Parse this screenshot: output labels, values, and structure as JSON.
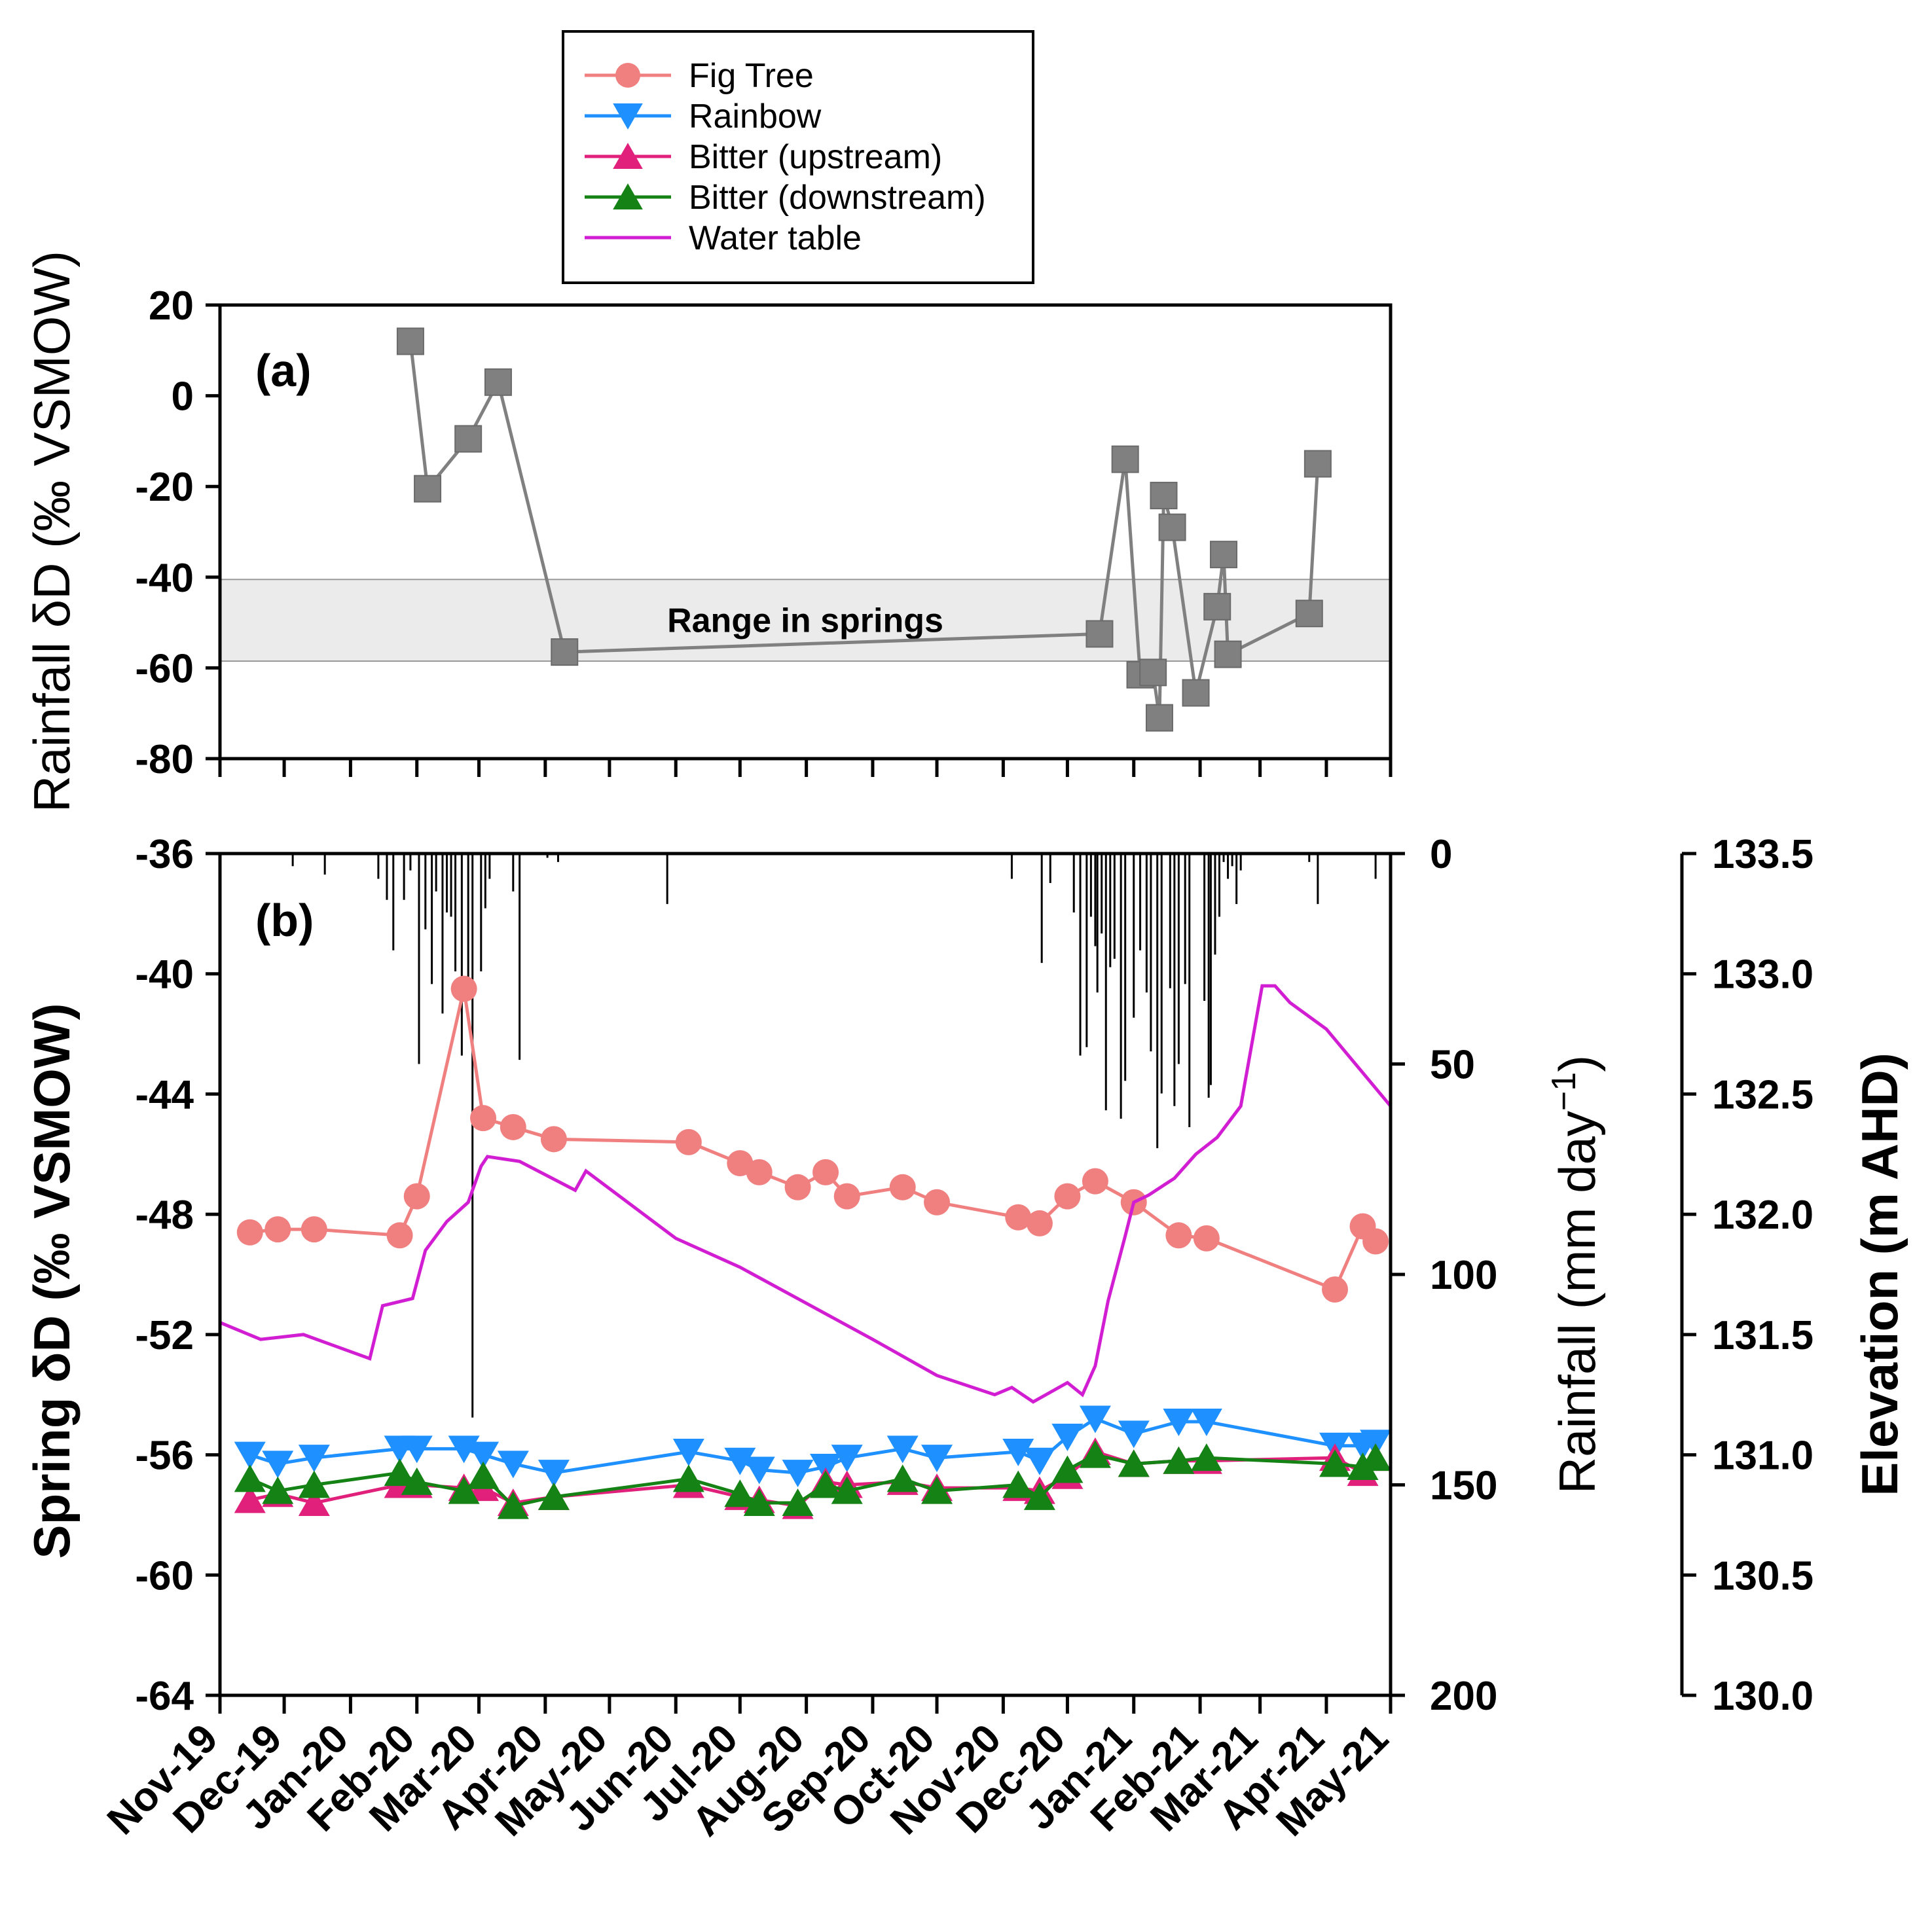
{
  "legend": {
    "items": [
      {
        "key": "fig",
        "label": "Fig Tree",
        "color": "#F08080",
        "marker": "circle"
      },
      {
        "key": "rainbow",
        "label": "Rainbow",
        "color": "#1E90FF",
        "marker": "triangle-down"
      },
      {
        "key": "bitter_up",
        "label": "Bitter (upstream)",
        "color": "#E0207A",
        "marker": "triangle-up"
      },
      {
        "key": "bitter_down",
        "label": "Bitter (downstream)",
        "color": "#148214",
        "marker": "triangle-up"
      },
      {
        "key": "water_table",
        "label": "Water table",
        "color": "#D21ED2",
        "marker": "line"
      }
    ]
  },
  "x_axis": {
    "tick_labels": [
      "Nov-19",
      "Dec-19",
      "Jan-20",
      "Feb-20",
      "Mar-20",
      "Apr-20",
      "May-20",
      "Jun-20",
      "Jul-20",
      "Aug-20",
      "Sep-20",
      "Oct-20",
      "Nov-20",
      "Dec-20",
      "Jan-21",
      "Feb-21",
      "Mar-21",
      "Apr-21",
      "May-21"
    ]
  },
  "chart_data": [
    {
      "id": "a",
      "panel_label": "(a)",
      "type": "line",
      "ylabel": "Rainfall δD (‰ VSMOW)",
      "ylim": [
        -80,
        20
      ],
      "yticks": [
        20,
        0,
        -20,
        -40,
        -60,
        -80
      ],
      "band": {
        "label": "Range in springs",
        "range": [
          -58.5,
          -40.5
        ],
        "color": "#EBEBEB"
      },
      "series": [
        {
          "color": "#808080",
          "marker": "square",
          "x": [
            "2020-01-29",
            "2020-02-06",
            "2020-02-25",
            "2020-03-10",
            "2020-04-10",
            "2020-12-16",
            "2020-12-28",
            "2021-01-04",
            "2021-01-10",
            "2021-01-13",
            "2021-01-15",
            "2021-01-19",
            "2021-01-30",
            "2021-02-09",
            "2021-02-12",
            "2021-02-14",
            "2021-03-24",
            "2021-03-28"
          ],
          "values": [
            12,
            -20.5,
            -9.5,
            3,
            -56.5,
            -52.5,
            -14,
            -61.5,
            -61,
            -71,
            -22,
            -29,
            -65.5,
            -46.5,
            -35,
            -57,
            -48,
            -15
          ]
        }
      ]
    },
    {
      "id": "b",
      "panel_label": "(b)",
      "type": "line",
      "ylabel": "Spring δD (‰ VSMOW)",
      "ylim": [
        -64,
        -36
      ],
      "yticks": [
        -36,
        -40,
        -44,
        -48,
        -52,
        -56,
        -60,
        -64
      ],
      "y2label": "Rainfall (mm day−1)",
      "y2lim": [
        200,
        0
      ],
      "y2ticks": [
        0,
        50,
        100,
        150,
        200
      ],
      "y3label": "Elevation (m AHD)",
      "y3lim": [
        130.0,
        133.5
      ],
      "y3ticks": [
        "133.5",
        "133.0",
        "132.5",
        "132.0",
        "131.5",
        "131.0",
        "130.5",
        "130.0"
      ],
      "series": [
        {
          "key": "fig",
          "x": [
            "2019-11-15",
            "2019-11-28",
            "2019-12-15",
            "2020-01-24",
            "2020-02-01",
            "2020-02-23",
            "2020-03-03",
            "2020-03-17",
            "2020-04-05",
            "2020-06-07",
            "2020-07-01",
            "2020-07-10",
            "2020-07-28",
            "2020-08-10",
            "2020-08-20",
            "2020-09-15",
            "2020-10-01",
            "2020-11-08",
            "2020-11-18",
            "2020-12-01",
            "2020-12-14",
            "2021-01-01",
            "2021-01-22",
            "2021-02-04",
            "2021-04-05",
            "2021-04-18",
            "2021-04-24"
          ],
          "values": [
            -48.6,
            -48.5,
            -48.5,
            -48.7,
            -47.4,
            -40.5,
            -44.8,
            -45.1,
            -45.5,
            -45.6,
            -46.3,
            -46.6,
            -47.1,
            -46.6,
            -47.4,
            -47.1,
            -47.6,
            -48.1,
            -48.3,
            -47.4,
            -46.9,
            -47.6,
            -48.7,
            -48.8,
            -50.5,
            -48.4,
            -48.9
          ]
        },
        {
          "key": "rainbow",
          "x": [
            "2019-11-15",
            "2019-11-28",
            "2019-12-15",
            "2020-01-24",
            "2020-02-01",
            "2020-02-23",
            "2020-03-03",
            "2020-03-17",
            "2020-04-05",
            "2020-06-07",
            "2020-07-01",
            "2020-07-10",
            "2020-07-28",
            "2020-08-10",
            "2020-08-20",
            "2020-09-15",
            "2020-10-01",
            "2020-11-08",
            "2020-11-18",
            "2020-12-01",
            "2020-12-14",
            "2021-01-01",
            "2021-01-22",
            "2021-02-04",
            "2021-04-05",
            "2021-04-18",
            "2021-04-24"
          ],
          "values": [
            -56.0,
            -56.3,
            -56.1,
            -55.8,
            -55.8,
            -55.8,
            -56.0,
            -56.3,
            -56.6,
            -55.9,
            -56.2,
            -56.5,
            -56.6,
            -56.4,
            -56.1,
            -55.8,
            -56.1,
            -55.9,
            -56.2,
            -55.4,
            -54.8,
            -55.3,
            -54.9,
            -54.9,
            -55.7,
            -55.7,
            -55.6
          ]
        },
        {
          "key": "bitter_up",
          "x": [
            "2019-11-15",
            "2019-11-28",
            "2019-12-15",
            "2020-01-24",
            "2020-02-01",
            "2020-02-23",
            "2020-03-03",
            "2020-03-17",
            "2020-04-05",
            "2020-06-07",
            "2020-07-01",
            "2020-07-10",
            "2020-07-28",
            "2020-08-10",
            "2020-08-20",
            "2020-09-15",
            "2020-10-01",
            "2020-11-08",
            "2020-11-18",
            "2020-12-01",
            "2020-12-14",
            "2021-01-01",
            "2021-01-22",
            "2021-02-04",
            "2021-04-05",
            "2021-04-18",
            "2021-04-24"
          ],
          "values": [
            -57.5,
            -57.3,
            -57.6,
            -57.0,
            -57.0,
            -57.1,
            -57.1,
            -57.6,
            -57.4,
            -57.0,
            -57.4,
            -57.5,
            -57.7,
            -56.9,
            -57.0,
            -56.9,
            -57.1,
            -57.1,
            -57.2,
            -56.7,
            -55.9,
            -56.3,
            -56.2,
            -56.2,
            -56.1,
            -56.6,
            -56.1
          ]
        },
        {
          "key": "bitter_down",
          "x": [
            "2019-11-15",
            "2019-11-28",
            "2019-12-15",
            "2020-01-24",
            "2020-02-01",
            "2020-02-23",
            "2020-03-03",
            "2020-03-17",
            "2020-04-05",
            "2020-06-07",
            "2020-07-01",
            "2020-07-10",
            "2020-07-28",
            "2020-08-10",
            "2020-08-20",
            "2020-09-15",
            "2020-10-01",
            "2020-11-08",
            "2020-11-18",
            "2020-12-01",
            "2020-12-14",
            "2021-01-01",
            "2021-01-22",
            "2021-02-04",
            "2021-04-05",
            "2021-04-18",
            "2021-04-24"
          ],
          "values": [
            -56.8,
            -57.2,
            -57.0,
            -56.6,
            -56.9,
            -57.2,
            -56.7,
            -57.7,
            -57.4,
            -56.8,
            -57.3,
            -57.6,
            -57.6,
            -57.0,
            -57.2,
            -56.8,
            -57.2,
            -57.0,
            -57.4,
            -56.5,
            -56.0,
            -56.3,
            -56.2,
            -56.1,
            -56.3,
            -56.4,
            -56.1
          ]
        },
        {
          "key": "water_table",
          "axis": "y3",
          "x": [
            "2019-11-01",
            "2019-11-20",
            "2019-12-10",
            "2020-01-10",
            "2020-01-16",
            "2020-01-30",
            "2020-02-05",
            "2020-02-15",
            "2020-02-25",
            "2020-03-02",
            "2020-03-05",
            "2020-03-20",
            "2020-04-15",
            "2020-04-20",
            "2020-05-02",
            "2020-06-01",
            "2020-07-01",
            "2020-08-01",
            "2020-09-01",
            "2020-10-01",
            "2020-10-28",
            "2020-11-05",
            "2020-11-15",
            "2020-12-01",
            "2020-12-08",
            "2020-12-14",
            "2020-12-20",
            "2020-12-28",
            "2021-01-01",
            "2021-01-08",
            "2021-01-20",
            "2021-01-30",
            "2021-02-09",
            "2021-02-20",
            "2021-03-02",
            "2021-03-08",
            "2021-03-15",
            "2021-04-01",
            "2021-05-01"
          ],
          "values": [
            131.55,
            131.48,
            131.5,
            131.4,
            131.62,
            131.65,
            131.85,
            131.97,
            132.05,
            132.2,
            132.24,
            132.22,
            132.1,
            132.18,
            132.1,
            131.9,
            131.78,
            131.63,
            131.48,
            131.33,
            131.25,
            131.28,
            131.22,
            131.3,
            131.25,
            131.37,
            131.64,
            131.91,
            132.05,
            132.08,
            132.15,
            132.25,
            132.32,
            132.45,
            132.95,
            132.95,
            132.88,
            132.77,
            132.45
          ]
        },
        {
          "key": "rainfall",
          "axis": "y2",
          "type": "bar",
          "color": "#000000",
          "x": [
            "2019-12-05",
            "2019-12-20",
            "2020-01-14",
            "2020-01-18",
            "2020-01-21",
            "2020-01-26",
            "2020-01-29",
            "2020-02-02",
            "2020-02-05",
            "2020-02-08",
            "2020-02-10",
            "2020-02-13",
            "2020-02-15",
            "2020-02-17",
            "2020-02-19",
            "2020-02-22",
            "2020-02-25",
            "2020-02-27",
            "2020-03-02",
            "2020-03-04",
            "2020-03-06",
            "2020-03-17",
            "2020-03-20",
            "2020-04-02",
            "2020-04-07",
            "2020-05-28",
            "2020-11-05",
            "2020-11-19",
            "2020-11-23",
            "2020-12-04",
            "2020-12-07",
            "2020-12-10",
            "2020-12-12",
            "2020-12-14",
            "2020-12-15",
            "2020-12-17",
            "2020-12-19",
            "2020-12-21",
            "2020-12-23",
            "2020-12-26",
            "2020-12-28",
            "2021-01-01",
            "2021-01-04",
            "2021-01-07",
            "2021-01-09",
            "2021-01-12",
            "2021-01-14",
            "2021-01-18",
            "2021-01-20",
            "2021-01-22",
            "2021-01-25",
            "2021-01-27",
            "2021-02-03",
            "2021-02-05",
            "2021-02-06",
            "2021-02-08",
            "2021-02-10",
            "2021-02-12",
            "2021-02-14",
            "2021-02-16",
            "2021-02-18",
            "2021-02-20",
            "2021-03-24",
            "2021-03-28",
            "2021-04-24"
          ],
          "values": [
            3,
            5,
            6,
            11,
            23,
            11,
            4,
            50,
            18,
            31,
            9,
            38,
            14,
            15,
            28,
            48,
            35,
            134,
            28,
            13,
            6,
            9,
            49,
            1,
            2,
            12,
            6,
            26,
            7,
            14,
            48,
            46,
            15,
            22,
            33,
            19,
            61,
            27,
            25,
            63,
            54,
            39,
            23,
            33,
            47,
            70,
            57,
            32,
            60,
            50,
            31,
            65,
            35,
            58,
            55,
            24,
            15,
            2,
            6,
            3,
            12,
            4,
            2,
            12,
            6
          ]
        }
      ]
    }
  ]
}
